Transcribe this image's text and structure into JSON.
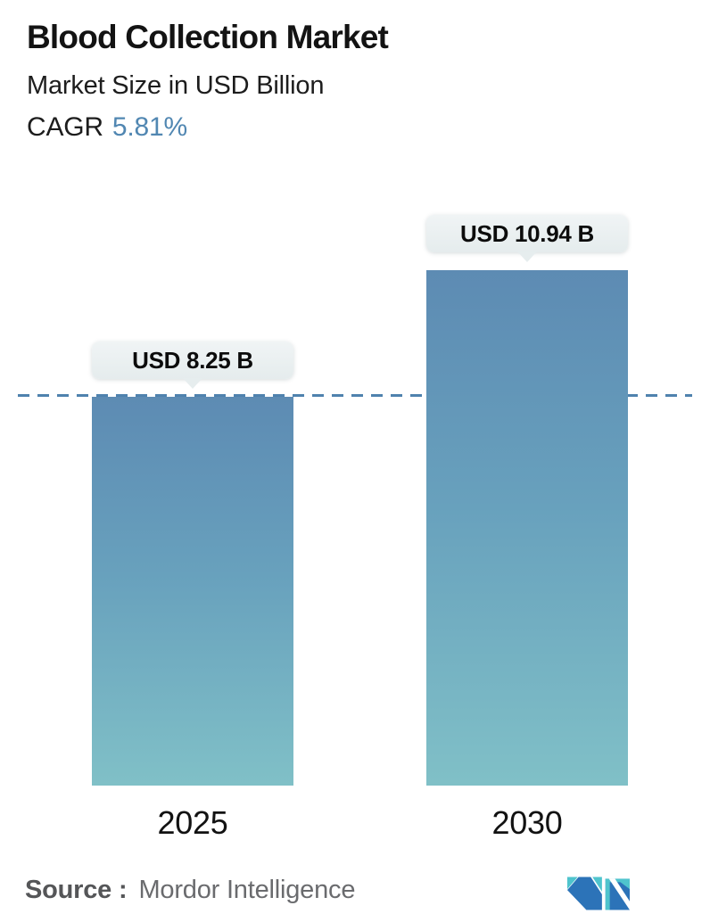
{
  "header": {
    "title": "Blood Collection Market",
    "subtitle": "Market Size in USD Billion",
    "cagr_label": "CAGR",
    "cagr_value": "5.81%"
  },
  "chart_data": {
    "type": "bar",
    "categories": [
      "2025",
      "2030"
    ],
    "values": [
      8.25,
      10.94
    ],
    "value_labels": [
      "USD 8.25 B",
      "USD 10.94 B"
    ],
    "title": "Blood Collection Market",
    "subtitle": "Market Size in USD Billion",
    "unit": "USD Billion",
    "cagr_percent": 5.81,
    "dashed_reference_line_at": 8.25,
    "ylim": [
      0,
      11.5
    ],
    "grid": false,
    "legend": false,
    "bar_gradient_top": "#5d8bb3",
    "bar_gradient_bottom": "#80c0c7",
    "dashed_line_color": "#4f82ae",
    "tooltip_bg": "#e9efef"
  },
  "footer": {
    "source_label": "Source :",
    "source_value": "Mordor Intelligence",
    "logo": "mordor-intelligence-logo",
    "logo_teal": "#4fc4cd",
    "logo_blue": "#2c73b8"
  },
  "colors": {
    "accent_blue": "#5187b2",
    "text_dark": "#131313",
    "footer_gray": "#6a6b6e"
  }
}
